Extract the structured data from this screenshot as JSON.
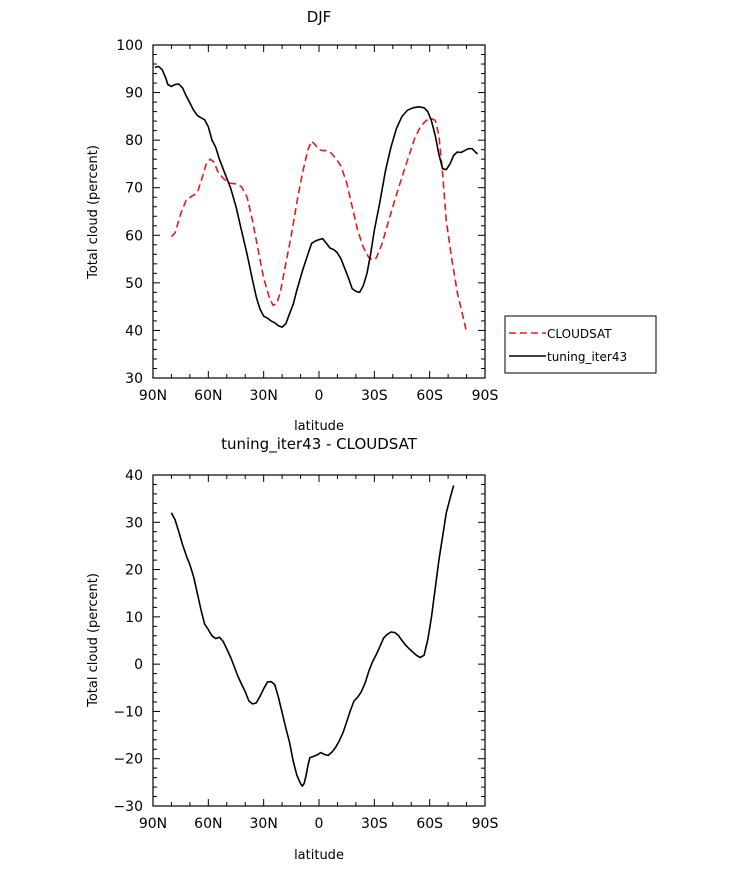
{
  "chart_data": [
    {
      "type": "line",
      "title": "DJF",
      "xlabel": "latitude",
      "ylabel": "Total cloud (percent)",
      "xlim": [
        -90,
        90
      ],
      "ylim": [
        30,
        100
      ],
      "x_tick_values": [
        -90,
        -60,
        -30,
        0,
        30,
        60,
        90
      ],
      "x_tick_labels": [
        "90N",
        "60N",
        "30N",
        "0",
        "30S",
        "60S",
        "90S"
      ],
      "y_ticks": [
        30,
        40,
        50,
        60,
        70,
        80,
        90,
        100
      ],
      "legend_position": "right",
      "series": [
        {
          "name": "CLOUDSAT",
          "color": "#e8191b",
          "dash": "dashed",
          "points": [
            [
              -80,
              59.7
            ],
            [
              -78,
              60.5
            ],
            [
              -75,
              64.5
            ],
            [
              -72,
              67.4
            ],
            [
              -69,
              68.2
            ],
            [
              -66,
              68.9
            ],
            [
              -63,
              72.5
            ],
            [
              -61,
              75.2
            ],
            [
              -59,
              76
            ],
            [
              -57,
              75.4
            ],
            [
              -55,
              73.5
            ],
            [
              -52,
              72
            ],
            [
              -49,
              71
            ],
            [
              -45,
              70.8
            ],
            [
              -42,
              70.2
            ],
            [
              -39,
              68
            ],
            [
              -36,
              63
            ],
            [
              -33,
              57
            ],
            [
              -30,
              51
            ],
            [
              -27,
              47
            ],
            [
              -25,
              45.3
            ],
            [
              -23,
              45.6
            ],
            [
              -21,
              48
            ],
            [
              -18,
              54
            ],
            [
              -15,
              60
            ],
            [
              -12,
              67
            ],
            [
              -9,
              73
            ],
            [
              -6,
              78
            ],
            [
              -4,
              79.8
            ],
            [
              -2,
              79
            ],
            [
              0,
              78
            ],
            [
              2,
              77.8
            ],
            [
              4,
              77.8
            ],
            [
              6,
              77.5
            ],
            [
              9,
              76.2
            ],
            [
              12,
              74.5
            ],
            [
              15,
              71
            ],
            [
              18,
              66
            ],
            [
              21,
              61
            ],
            [
              24,
              57.5
            ],
            [
              27,
              55.3
            ],
            [
              29,
              54.8
            ],
            [
              31,
              55.2
            ],
            [
              34,
              58
            ],
            [
              37,
              62
            ],
            [
              40,
              66
            ],
            [
              43,
              69.8
            ],
            [
              46,
              73.4
            ],
            [
              49,
              77
            ],
            [
              52,
              80.5
            ],
            [
              55,
              82.8
            ],
            [
              58,
              84.1
            ],
            [
              61,
              84.5
            ],
            [
              63,
              84.2
            ],
            [
              65,
              81
            ],
            [
              67,
              73
            ],
            [
              69,
              63
            ],
            [
              72,
              55
            ],
            [
              75,
              48
            ],
            [
              78,
              43
            ],
            [
              80,
              39.6
            ]
          ]
        },
        {
          "name": "tuning_iter43",
          "color": "#000000",
          "dash": "solid",
          "points": [
            [
              -89,
              95.3
            ],
            [
              -87,
              95.5
            ],
            [
              -85,
              94.8
            ],
            [
              -83,
              93
            ],
            [
              -82,
              91.7
            ],
            [
              -80,
              91.3
            ],
            [
              -78,
              91.7
            ],
            [
              -76,
              91.8
            ],
            [
              -74,
              91
            ],
            [
              -72,
              89.3
            ],
            [
              -70,
              87.8
            ],
            [
              -68,
              86.3
            ],
            [
              -66,
              85.2
            ],
            [
              -64,
              84.7
            ],
            [
              -62,
              84.3
            ],
            [
              -60,
              82.8
            ],
            [
              -58,
              80
            ],
            [
              -56,
              78.5
            ],
            [
              -54,
              76
            ],
            [
              -51,
              73
            ],
            [
              -48,
              70
            ],
            [
              -45,
              66
            ],
            [
              -42,
              61
            ],
            [
              -39,
              56
            ],
            [
              -36,
              50.5
            ],
            [
              -34,
              47
            ],
            [
              -32,
              44.5
            ],
            [
              -30,
              43
            ],
            [
              -28,
              42.6
            ],
            [
              -26,
              42
            ],
            [
              -24,
              41.6
            ],
            [
              -22,
              41
            ],
            [
              -20,
              40.7
            ],
            [
              -18,
              41.4
            ],
            [
              -16,
              43.5
            ],
            [
              -14,
              45.5
            ],
            [
              -12,
              48.5
            ],
            [
              -9,
              52.5
            ],
            [
              -6,
              56
            ],
            [
              -4,
              58.3
            ],
            [
              -2,
              58.8
            ],
            [
              0,
              59.1
            ],
            [
              2,
              59.3
            ],
            [
              4,
              58.3
            ],
            [
              6,
              57.3
            ],
            [
              8,
              57
            ],
            [
              10,
              56.3
            ],
            [
              12,
              55
            ],
            [
              14,
              53
            ],
            [
              16,
              51
            ],
            [
              18,
              48.8
            ],
            [
              20,
              48.2
            ],
            [
              22,
              48
            ],
            [
              24,
              49.4
            ],
            [
              26,
              52
            ],
            [
              28,
              56
            ],
            [
              30,
              61
            ],
            [
              33,
              67
            ],
            [
              36,
              73.5
            ],
            [
              39,
              78.5
            ],
            [
              42,
              82.5
            ],
            [
              45,
              85
            ],
            [
              48,
              86.3
            ],
            [
              51,
              86.8
            ],
            [
              54,
              87
            ],
            [
              57,
              86.8
            ],
            [
              59,
              86
            ],
            [
              61,
              84
            ],
            [
              63,
              81
            ],
            [
              65,
              77
            ],
            [
              67,
              74
            ],
            [
              69,
              73.8
            ],
            [
              71,
              75
            ],
            [
              73,
              76.8
            ],
            [
              75,
              77.5
            ],
            [
              77,
              77.4
            ],
            [
              79,
              77.8
            ],
            [
              81,
              78.2
            ],
            [
              83,
              78.2
            ],
            [
              85,
              77.4
            ],
            [
              86,
              77.1
            ]
          ]
        }
      ]
    },
    {
      "type": "line",
      "title": "tuning_iter43 - CLOUDSAT",
      "xlabel": "latitude",
      "ylabel": "Total cloud (percent)",
      "xlim": [
        -90,
        90
      ],
      "ylim": [
        -30,
        40
      ],
      "x_tick_values": [
        -90,
        -60,
        -30,
        0,
        30,
        60,
        90
      ],
      "x_tick_labels": [
        "90N",
        "60N",
        "30N",
        "0",
        "30S",
        "60S",
        "90S"
      ],
      "y_ticks": [
        -30,
        -20,
        -10,
        0,
        10,
        20,
        30,
        40
      ],
      "series": [
        {
          "color": "#000000",
          "dash": "solid",
          "points": [
            [
              -80,
              32
            ],
            [
              -78,
              30.5
            ],
            [
              -76,
              28
            ],
            [
              -74,
              25.3
            ],
            [
              -72,
              23
            ],
            [
              -70,
              21
            ],
            [
              -68,
              18.5
            ],
            [
              -66,
              15
            ],
            [
              -64,
              11.5
            ],
            [
              -62,
              8.5
            ],
            [
              -60,
              7.3
            ],
            [
              -58,
              6
            ],
            [
              -56,
              5.4
            ],
            [
              -54,
              5.7
            ],
            [
              -52,
              4.8
            ],
            [
              -50,
              3.2
            ],
            [
              -48,
              1.5
            ],
            [
              -46,
              -0.5
            ],
            [
              -44,
              -2.5
            ],
            [
              -42,
              -4.2
            ],
            [
              -40,
              -5.8
            ],
            [
              -38,
              -7.8
            ],
            [
              -36,
              -8.4
            ],
            [
              -34,
              -8.2
            ],
            [
              -32,
              -6.8
            ],
            [
              -30,
              -5.2
            ],
            [
              -28,
              -3.8
            ],
            [
              -26,
              -3.7
            ],
            [
              -24,
              -4.3
            ],
            [
              -22,
              -7
            ],
            [
              -20,
              -10.2
            ],
            [
              -18,
              -13.5
            ],
            [
              -16,
              -16.5
            ],
            [
              -14,
              -20.5
            ],
            [
              -12,
              -23.5
            ],
            [
              -10,
              -25.3
            ],
            [
              -9,
              -25.8
            ],
            [
              -8,
              -25.2
            ],
            [
              -7,
              -23.5
            ],
            [
              -6,
              -21.5
            ],
            [
              -5,
              -19.8
            ],
            [
              -3,
              -19.5
            ],
            [
              -1,
              -19.2
            ],
            [
              1,
              -18.7
            ],
            [
              3,
              -19.1
            ],
            [
              5,
              -19.3
            ],
            [
              7,
              -18.6
            ],
            [
              9,
              -17.6
            ],
            [
              11,
              -16.2
            ],
            [
              13,
              -14.5
            ],
            [
              15,
              -12.2
            ],
            [
              17,
              -9.8
            ],
            [
              19,
              -7.8
            ],
            [
              21,
              -7
            ],
            [
              23,
              -5.8
            ],
            [
              25,
              -4
            ],
            [
              27,
              -1.5
            ],
            [
              29,
              0.5
            ],
            [
              31,
              2
            ],
            [
              33,
              3.7
            ],
            [
              35,
              5.5
            ],
            [
              37,
              6.3
            ],
            [
              39,
              6.8
            ],
            [
              41,
              6.7
            ],
            [
              43,
              6.1
            ],
            [
              45,
              5
            ],
            [
              47,
              4
            ],
            [
              49,
              3.2
            ],
            [
              51,
              2.5
            ],
            [
              53,
              1.8
            ],
            [
              55,
              1.4
            ],
            [
              57,
              1.9
            ],
            [
              59,
              5.2
            ],
            [
              61,
              10
            ],
            [
              63,
              16
            ],
            [
              65,
              22
            ],
            [
              67,
              27
            ],
            [
              69,
              32
            ],
            [
              71,
              35
            ],
            [
              73,
              37.8
            ]
          ]
        }
      ]
    }
  ]
}
